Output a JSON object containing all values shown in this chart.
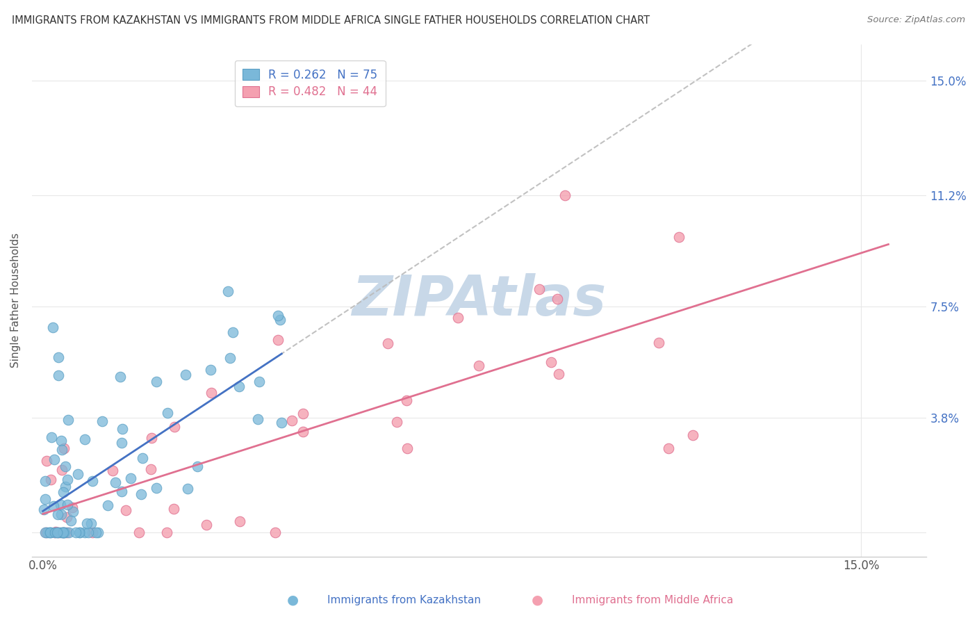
{
  "title": "IMMIGRANTS FROM KAZAKHSTAN VS IMMIGRANTS FROM MIDDLE AFRICA SINGLE FATHER HOUSEHOLDS CORRELATION CHART",
  "source": "Source: ZipAtlas.com",
  "ylabel_label": "Single Father Households",
  "ytick_positions": [
    0.0,
    0.038,
    0.075,
    0.112,
    0.15
  ],
  "ytick_labels": [
    "",
    "3.8%",
    "7.5%",
    "11.2%",
    "15.0%"
  ],
  "xtick_positions": [
    0.0,
    0.15
  ],
  "xtick_labels": [
    "0.0%",
    "15.0%"
  ],
  "xmin": -0.002,
  "xmax": 0.162,
  "ymin": -0.008,
  "ymax": 0.162,
  "kazakhstan_color": "#7ab8d9",
  "kazakhstan_edge": "#5a9fc4",
  "middle_africa_color": "#f4a0b0",
  "middle_africa_edge": "#e07090",
  "kazakhstan_R": 0.262,
  "kazakhstan_N": 75,
  "middle_africa_R": 0.482,
  "middle_africa_N": 44,
  "trend_kaz_color": "#4472c4",
  "trend_ma_color": "#e07090",
  "trend_dashed_color": "#bbbbbb",
  "watermark_text": "ZIPAtlas",
  "watermark_color": "#c8d8e8",
  "legend_label_1": "Immigrants from Kazakhstan",
  "legend_label_2": "Immigrants from Middle Africa",
  "background_color": "#ffffff",
  "grid_color": "#e8e8e8",
  "title_color": "#333333",
  "axis_label_color": "#555555",
  "tick_label_color": "#4472c4"
}
